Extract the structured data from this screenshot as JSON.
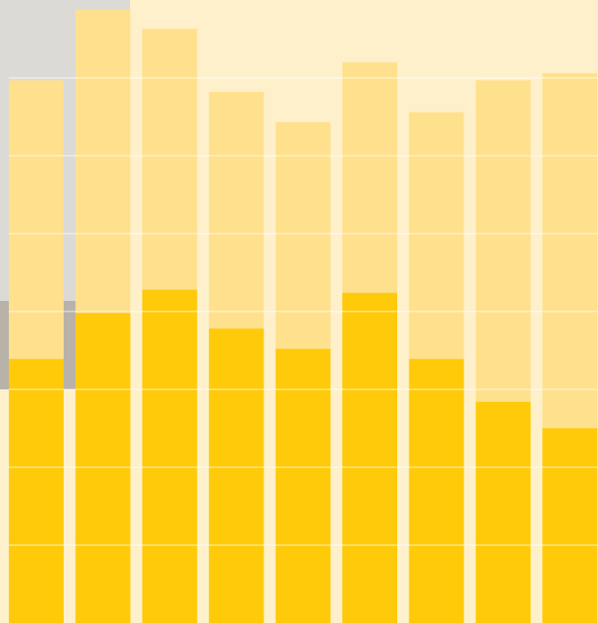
{
  "chart_data": {
    "type": "bar",
    "categories": [
      null,
      null,
      null,
      null,
      null,
      null,
      null,
      null,
      null
    ],
    "series": [
      {
        "color": "#ffe08c",
        "values": [
          6.97,
          7.88,
          7.63,
          6.82,
          6.43,
          7.2,
          6.56,
          6.97,
          7.06
        ]
      },
      {
        "color": "#ffca0a",
        "values": [
          3.39,
          3.98,
          4.28,
          3.78,
          3.52,
          4.24,
          3.39,
          2.84,
          2.5
        ]
      }
    ],
    "ylim": [
      0,
      8
    ],
    "yticks": [
      1,
      2,
      3,
      4,
      5,
      6,
      7
    ],
    "grid": true
  }
}
